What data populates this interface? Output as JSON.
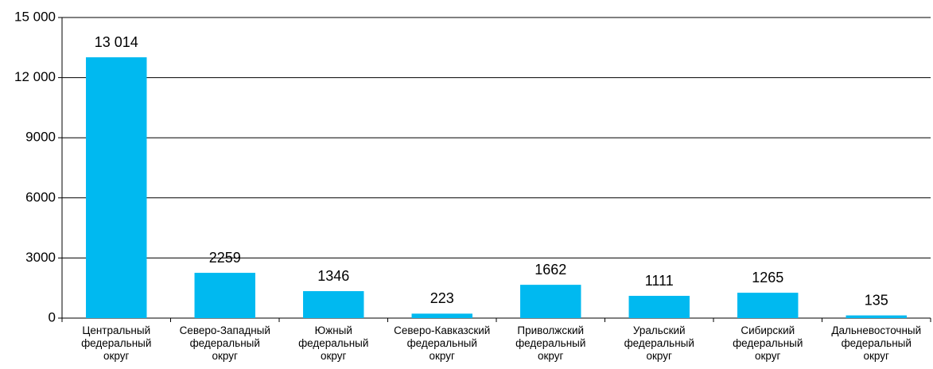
{
  "chart_data": {
    "type": "bar",
    "categories": [
      "Центральный федеральный округ",
      "Северо-Западный федеральный округ",
      "Южный федеральный округ",
      "Северо-Кавказский федеральный округ",
      "Приволжский федеральный округ",
      "Уральский федеральный округ",
      "Сибирский федеральный округ",
      "Дальневосточный федеральный округ"
    ],
    "values": [
      13014,
      2259,
      1346,
      223,
      1662,
      1111,
      1265,
      135
    ],
    "value_labels": [
      "13 014",
      "2259",
      "1346",
      "223",
      "1662",
      "1111",
      "1265",
      "135"
    ],
    "color": "#00b9f0",
    "ylim": [
      0,
      15000
    ],
    "yticks": [
      0,
      3000,
      6000,
      9000,
      {
        "value": 12000,
        "label": "12 000"
      },
      {
        "value": 15000,
        "label": "15 000"
      }
    ],
    "grid": true
  }
}
